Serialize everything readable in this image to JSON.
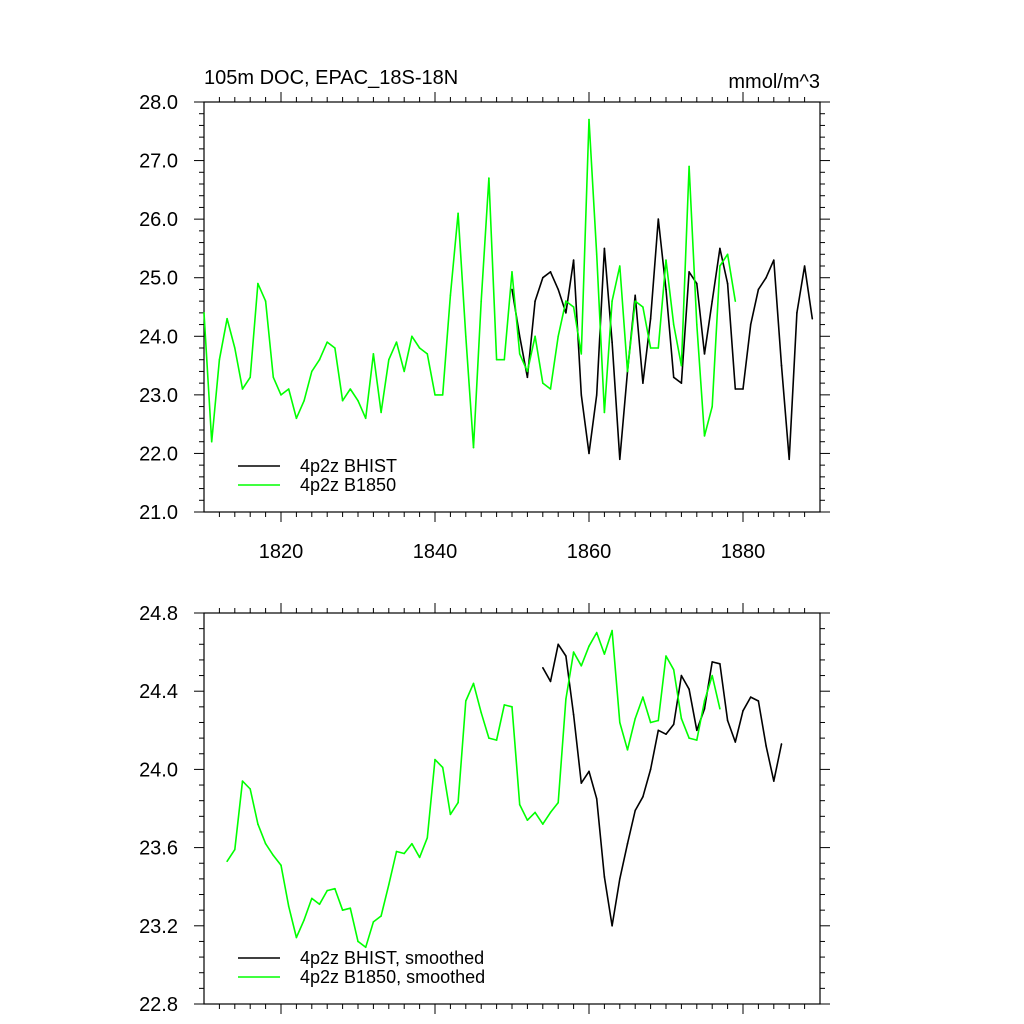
{
  "chart_data": [
    {
      "type": "line",
      "title": "105m DOC, EPAC_18S-18N",
      "units": "mmol/m^3",
      "xlim": [
        1810,
        1890
      ],
      "ylim": [
        21.0,
        28.0
      ],
      "x_ticks": [
        1820,
        1840,
        1860,
        1880
      ],
      "x_tick_labels": [
        "1820",
        "1840",
        "1860",
        "1880"
      ],
      "y_ticks": [
        21.0,
        22.0,
        23.0,
        24.0,
        25.0,
        26.0,
        27.0,
        28.0
      ],
      "y_tick_labels": [
        "21.0",
        "22.0",
        "23.0",
        "24.0",
        "25.0",
        "26.0",
        "27.0",
        "28.0"
      ],
      "legend_position": "bottom-left",
      "series": [
        {
          "name": "4p2z BHIST",
          "color": "#000000",
          "x": [
            1850,
            1851,
            1852,
            1853,
            1854,
            1855,
            1856,
            1857,
            1858,
            1859,
            1860,
            1861,
            1862,
            1863,
            1864,
            1865,
            1866,
            1867,
            1868,
            1869,
            1870,
            1871,
            1872,
            1873,
            1874,
            1875,
            1876,
            1877,
            1878,
            1879,
            1880,
            1881,
            1882,
            1883,
            1884,
            1885,
            1886,
            1887,
            1888,
            1889
          ],
          "y": [
            24.8,
            24.0,
            23.3,
            24.6,
            25.0,
            25.1,
            24.8,
            24.4,
            25.3,
            23.0,
            22.0,
            23.0,
            25.5,
            23.9,
            21.9,
            23.4,
            24.7,
            23.2,
            24.3,
            26.0,
            24.8,
            23.3,
            23.2,
            25.1,
            24.9,
            23.7,
            24.6,
            25.5,
            24.9,
            23.1,
            23.1,
            24.2,
            24.8,
            25.0,
            25.3,
            23.5,
            21.9,
            24.4,
            25.2,
            24.3
          ]
        },
        {
          "name": "4p2z B1850",
          "color": "#00ff00",
          "x": [
            1810,
            1811,
            1812,
            1813,
            1814,
            1815,
            1816,
            1817,
            1818,
            1819,
            1820,
            1821,
            1822,
            1823,
            1824,
            1825,
            1826,
            1827,
            1828,
            1829,
            1830,
            1831,
            1832,
            1833,
            1834,
            1835,
            1836,
            1837,
            1838,
            1839,
            1840,
            1841,
            1842,
            1843,
            1844,
            1845,
            1846,
            1847,
            1848,
            1849,
            1850,
            1851,
            1852,
            1853,
            1854,
            1855,
            1856,
            1857,
            1858,
            1859,
            1860,
            1861,
            1862,
            1863,
            1864,
            1865,
            1866,
            1867,
            1868,
            1869,
            1870,
            1871,
            1872,
            1873,
            1874,
            1875,
            1876,
            1877,
            1878,
            1879
          ],
          "y": [
            24.4,
            22.2,
            23.6,
            24.3,
            23.8,
            23.1,
            23.3,
            24.9,
            24.6,
            23.3,
            23.0,
            23.1,
            22.6,
            22.9,
            23.4,
            23.6,
            23.9,
            23.8,
            22.9,
            23.1,
            22.9,
            22.6,
            23.7,
            22.7,
            23.6,
            23.9,
            23.4,
            24.0,
            23.8,
            23.7,
            23.0,
            23.0,
            24.7,
            26.1,
            24.0,
            22.1,
            24.6,
            26.7,
            23.6,
            23.6,
            25.1,
            23.7,
            23.4,
            24.0,
            23.2,
            23.1,
            24.0,
            24.6,
            24.5,
            23.7,
            27.7,
            25.4,
            22.7,
            24.6,
            25.2,
            23.4,
            24.6,
            24.5,
            23.8,
            23.8,
            25.3,
            24.2,
            23.5,
            26.9,
            24.2,
            22.3,
            22.8,
            25.2,
            25.4,
            24.6
          ]
        }
      ]
    },
    {
      "type": "line",
      "xlim": [
        1810,
        1890
      ],
      "ylim": [
        22.8,
        24.8
      ],
      "x_ticks": [
        1820,
        1840,
        1860,
        1880
      ],
      "y_ticks": [
        22.8,
        23.2,
        23.6,
        24.0,
        24.4,
        24.8
      ],
      "y_tick_labels": [
        "22.8",
        "23.2",
        "23.6",
        "24.0",
        "24.4",
        "24.8"
      ],
      "legend_position": "bottom-left",
      "series": [
        {
          "name": "4p2z BHIST, smoothed",
          "color": "#000000",
          "x": [
            1854,
            1855,
            1856,
            1857,
            1858,
            1859,
            1860,
            1861,
            1862,
            1863,
            1864,
            1865,
            1866,
            1867,
            1868,
            1869,
            1870,
            1871,
            1872,
            1873,
            1874,
            1875,
            1876,
            1877,
            1878,
            1879,
            1880,
            1881,
            1882,
            1883,
            1884,
            1885
          ],
          "y": [
            24.52,
            24.45,
            24.64,
            24.58,
            24.28,
            23.93,
            23.99,
            23.85,
            23.45,
            23.2,
            23.44,
            23.62,
            23.79,
            23.86,
            24.0,
            24.2,
            24.18,
            24.23,
            24.48,
            24.41,
            24.2,
            24.31,
            24.55,
            24.54,
            24.25,
            24.14,
            24.3,
            24.37,
            24.35,
            24.12,
            23.94,
            24.13
          ]
        },
        {
          "name": "4p2z B1850, smoothed",
          "color": "#00ff00",
          "x": [
            1813,
            1814,
            1815,
            1816,
            1817,
            1818,
            1819,
            1820,
            1821,
            1822,
            1823,
            1824,
            1825,
            1826,
            1827,
            1828,
            1829,
            1830,
            1831,
            1832,
            1833,
            1834,
            1835,
            1836,
            1837,
            1838,
            1839,
            1840,
            1841,
            1842,
            1843,
            1844,
            1845,
            1846,
            1847,
            1848,
            1849,
            1850,
            1851,
            1852,
            1853,
            1854,
            1855,
            1856,
            1857,
            1858,
            1859,
            1860,
            1861,
            1862,
            1863,
            1864,
            1865,
            1866,
            1867,
            1868,
            1869,
            1870,
            1871,
            1872,
            1873,
            1874,
            1875,
            1876,
            1877
          ],
          "y": [
            23.53,
            23.59,
            23.94,
            23.9,
            23.72,
            23.62,
            23.56,
            23.51,
            23.3,
            23.14,
            23.23,
            23.34,
            23.31,
            23.38,
            23.39,
            23.28,
            23.29,
            23.12,
            23.09,
            23.22,
            23.25,
            23.41,
            23.58,
            23.57,
            23.62,
            23.55,
            23.65,
            24.05,
            24.01,
            23.77,
            23.83,
            24.35,
            24.44,
            24.29,
            24.16,
            24.15,
            24.33,
            24.32,
            23.82,
            23.74,
            23.78,
            23.72,
            23.78,
            23.83,
            24.36,
            24.6,
            24.53,
            24.63,
            24.7,
            24.59,
            24.71,
            24.24,
            24.1,
            24.26,
            24.37,
            24.24,
            24.25,
            24.58,
            24.51,
            24.26,
            24.16,
            24.15,
            24.35,
            24.48,
            24.31
          ]
        }
      ]
    }
  ]
}
